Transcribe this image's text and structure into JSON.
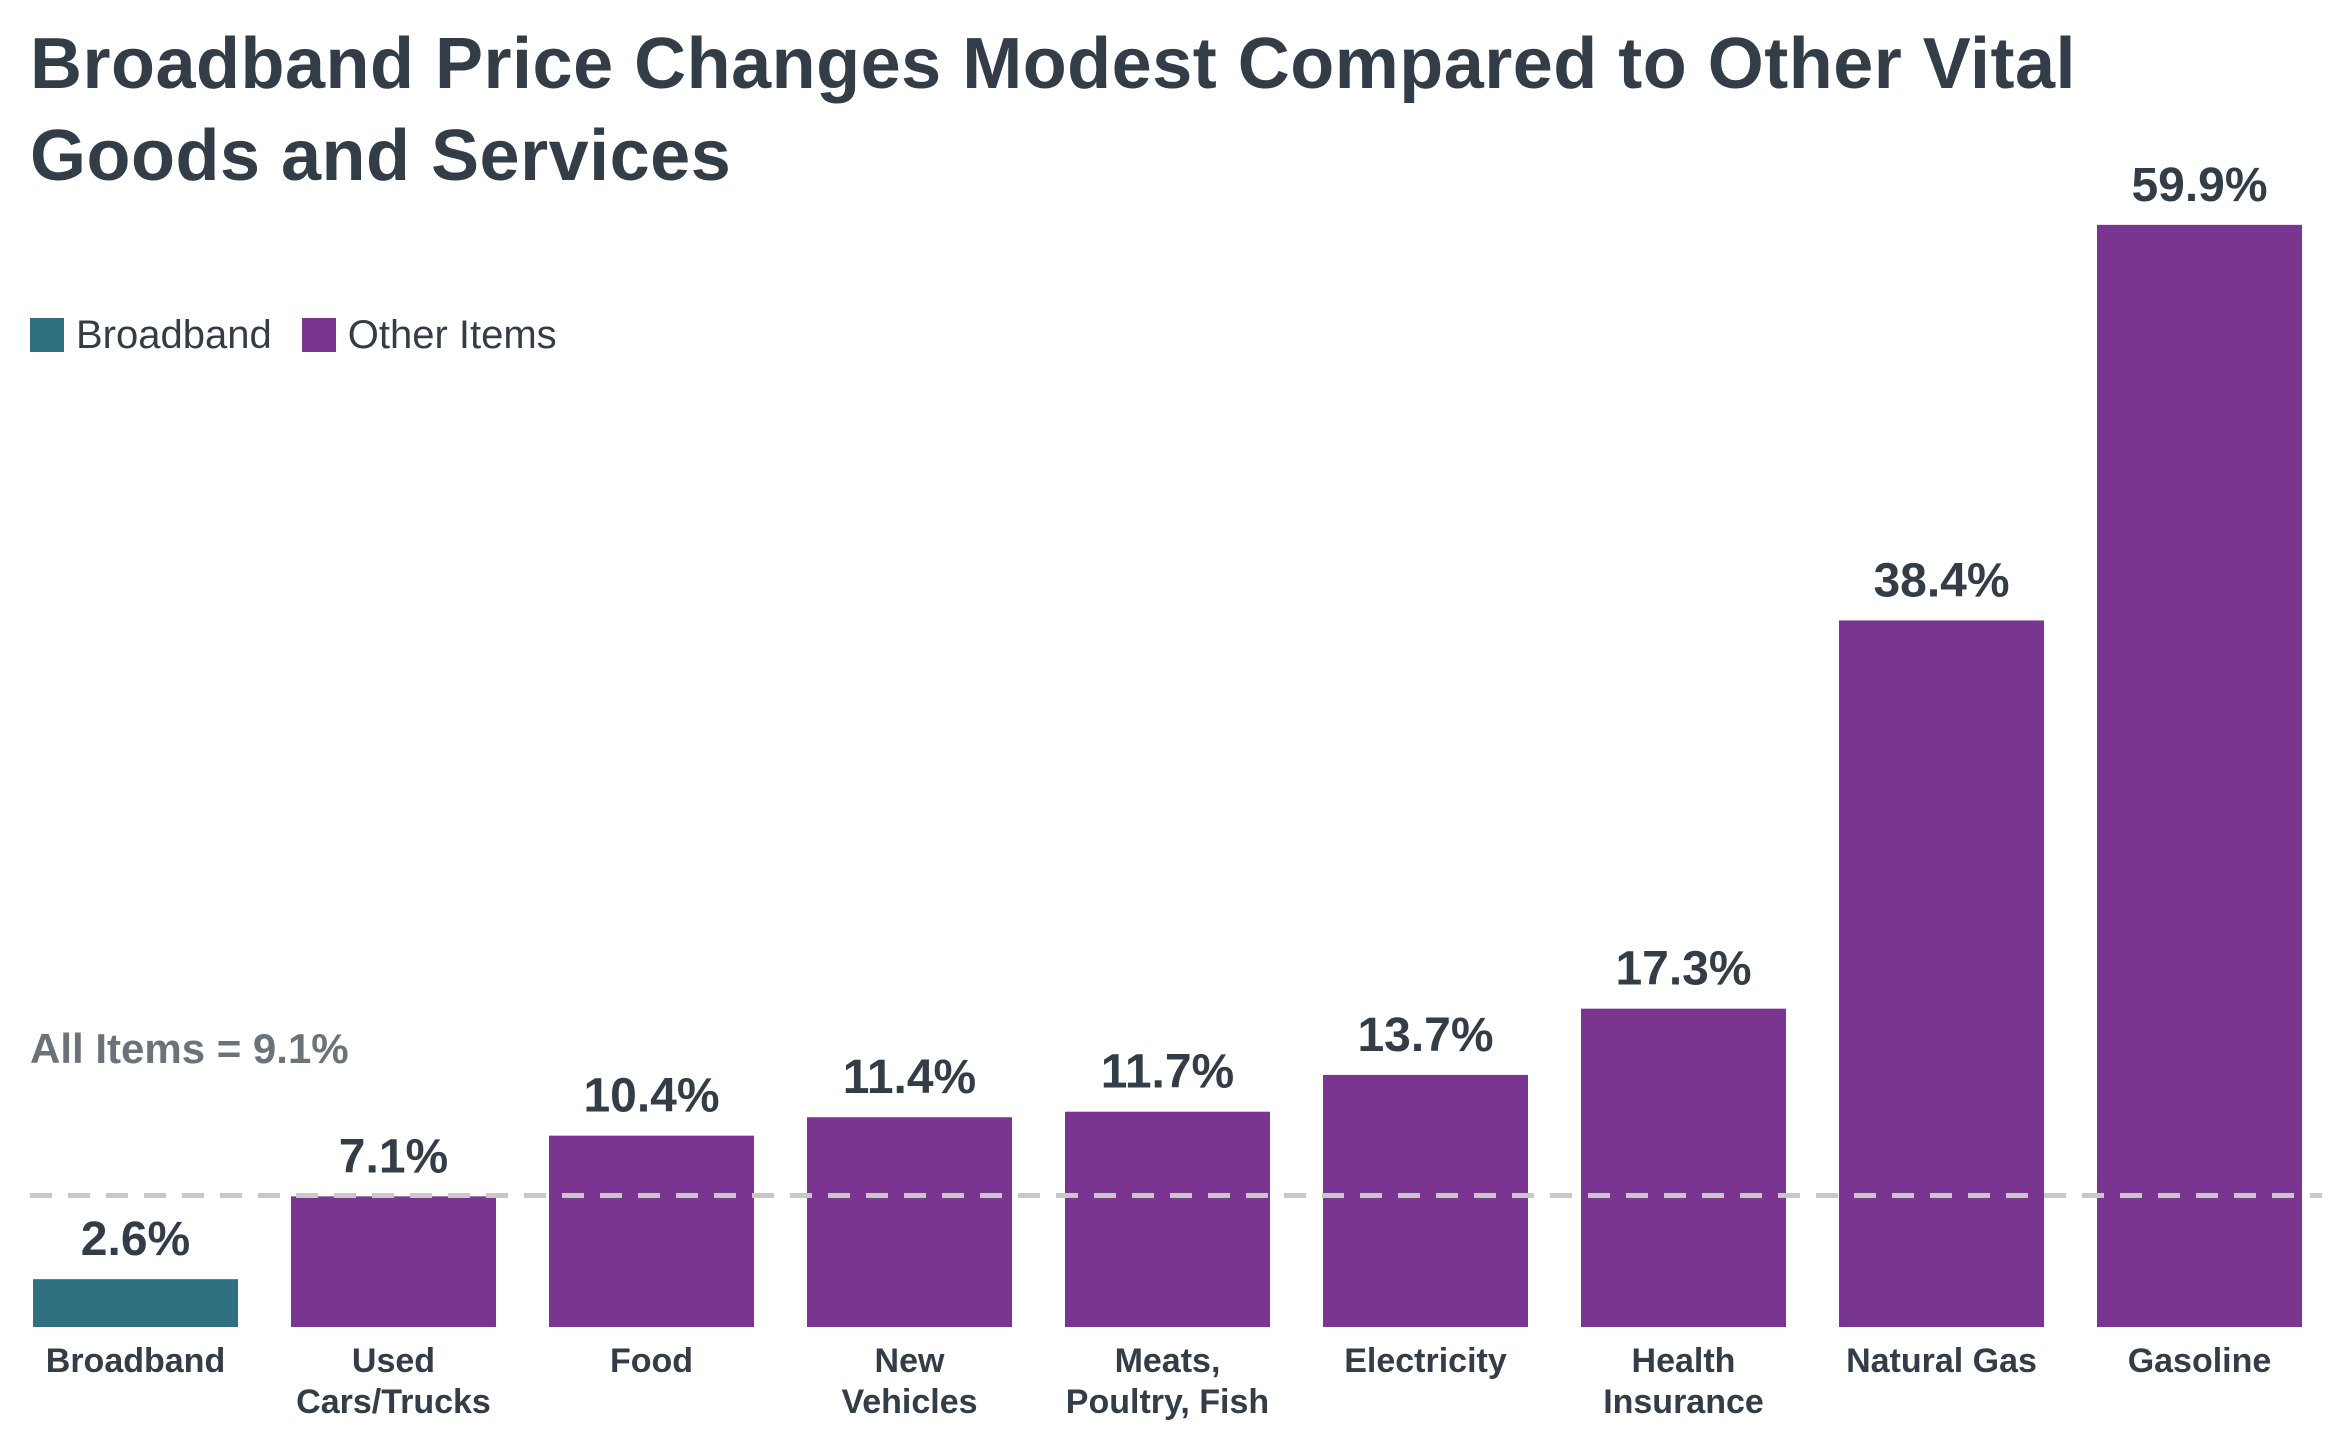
{
  "title_line1": "Broadband Price Changes Modest Compared to Other Vital",
  "title_line2": "Goods and Services",
  "legend": [
    {
      "label": "Broadband",
      "color": "#2f7180"
    },
    {
      "label": "Other Items",
      "color": "#7a3591"
    }
  ],
  "reference_label": "All Items = 9.1%",
  "chart_data": {
    "type": "bar",
    "title": "Broadband Price Changes Modest Compared to Other Vital Goods and Services",
    "xlabel": "",
    "ylabel": "",
    "ylim": [
      0,
      60
    ],
    "categories": [
      [
        "Broadband"
      ],
      [
        "Used",
        "Cars/Trucks"
      ],
      [
        "Food"
      ],
      [
        "New",
        "Vehicles"
      ],
      [
        "Meats,",
        "Poultry, Fish"
      ],
      [
        "Electricity"
      ],
      [
        "Health",
        "Insurance"
      ],
      [
        "Natural Gas"
      ],
      [
        "Gasoline"
      ]
    ],
    "values": [
      2.6,
      7.1,
      10.4,
      11.4,
      11.7,
      13.7,
      17.3,
      38.4,
      59.9
    ],
    "value_labels": [
      "2.6%",
      "7.1%",
      "10.4%",
      "11.4%",
      "11.7%",
      "13.7%",
      "17.3%",
      "38.4%",
      "59.9%"
    ],
    "series_group": [
      "Broadband",
      "Other Items",
      "Other Items",
      "Other Items",
      "Other Items",
      "Other Items",
      "Other Items",
      "Other Items",
      "Other Items"
    ],
    "reference_line": {
      "label": "All Items",
      "value": 9.1
    },
    "colors": {
      "Broadband": "#2f7180",
      "Other Items": "#7a3591",
      "reference": "#c8c8c8"
    },
    "grid": false,
    "legend_position": "top-left"
  }
}
